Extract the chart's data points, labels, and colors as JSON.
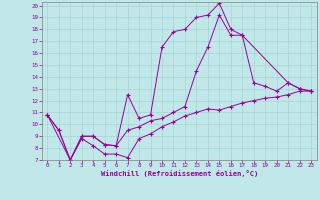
{
  "xlabel": "Windchill (Refroidissement éolien,°C)",
  "bg_color": "#c0e8e8",
  "line_color": "#990099",
  "xlim": [
    -0.5,
    23.5
  ],
  "ylim": [
    7,
    20.3
  ],
  "xticks": [
    0,
    1,
    2,
    3,
    4,
    5,
    6,
    7,
    8,
    9,
    10,
    11,
    12,
    13,
    14,
    15,
    16,
    17,
    18,
    19,
    20,
    21,
    22,
    23
  ],
  "yticks": [
    7,
    8,
    9,
    10,
    11,
    12,
    13,
    14,
    15,
    16,
    17,
    18,
    19,
    20
  ],
  "line1_x": [
    0,
    1,
    2,
    3,
    4,
    5,
    6,
    7,
    8,
    9,
    10,
    11,
    12,
    13,
    14,
    15,
    16,
    17,
    18,
    19,
    20,
    21,
    22,
    23
  ],
  "line1_y": [
    10.8,
    9.5,
    7.0,
    8.8,
    8.2,
    7.5,
    7.5,
    7.2,
    8.8,
    9.2,
    9.8,
    10.2,
    10.7,
    11.0,
    11.3,
    11.2,
    11.5,
    11.8,
    12.0,
    12.2,
    12.3,
    12.5,
    12.8,
    12.8
  ],
  "line2_x": [
    0,
    1,
    2,
    3,
    4,
    5,
    6,
    7,
    8,
    9,
    10,
    11,
    12,
    13,
    14,
    15,
    16,
    17,
    18,
    19,
    20,
    21,
    22,
    23
  ],
  "line2_y": [
    10.8,
    9.5,
    7.0,
    9.0,
    9.0,
    8.3,
    8.2,
    12.5,
    10.5,
    10.8,
    16.5,
    17.8,
    18.0,
    19.0,
    19.2,
    20.2,
    18.0,
    17.5,
    13.5,
    13.2,
    12.8,
    13.5,
    13.0,
    12.8
  ],
  "line3_x": [
    0,
    2,
    3,
    4,
    5,
    6,
    7,
    8,
    9,
    10,
    11,
    12,
    13,
    14,
    15,
    16,
    17,
    21,
    22,
    23
  ],
  "line3_y": [
    10.8,
    7.0,
    9.0,
    9.0,
    8.3,
    8.2,
    9.5,
    9.8,
    10.3,
    10.5,
    11.0,
    11.5,
    14.5,
    16.5,
    19.2,
    17.5,
    17.5,
    13.5,
    13.0,
    12.8
  ]
}
